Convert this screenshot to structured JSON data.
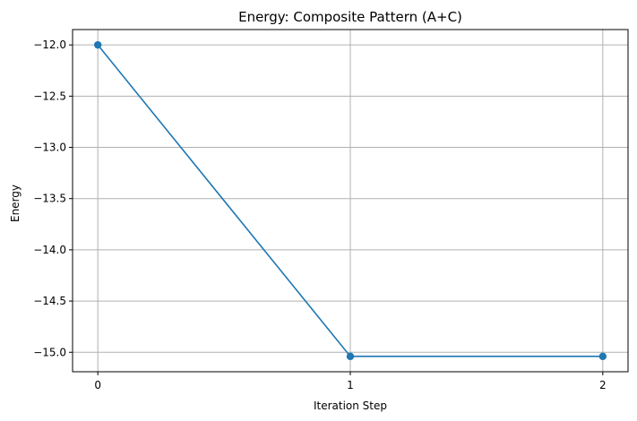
{
  "chart_data": {
    "type": "line",
    "title": "Energy: Composite Pattern (A+C)",
    "xlabel": "Iteration Step",
    "ylabel": "Energy",
    "x": [
      0,
      1,
      2
    ],
    "x_ticks": [
      "0",
      "1",
      "2"
    ],
    "y_ticks": [
      "−12.0",
      "−12.5",
      "−13.0",
      "−13.5",
      "−14.0",
      "−14.5",
      "−15.0"
    ],
    "y_tick_values": [
      -12.0,
      -12.5,
      -13.0,
      -13.5,
      -14.0,
      -14.5,
      -15.0
    ],
    "series": [
      {
        "values": [
          -12.0,
          -15.04,
          -15.04
        ],
        "color": "#1f77b4",
        "marker": "circle"
      }
    ],
    "xlim": [
      -0.1,
      2.1
    ],
    "ylim": [
      -15.19,
      -11.85
    ],
    "grid": true
  }
}
